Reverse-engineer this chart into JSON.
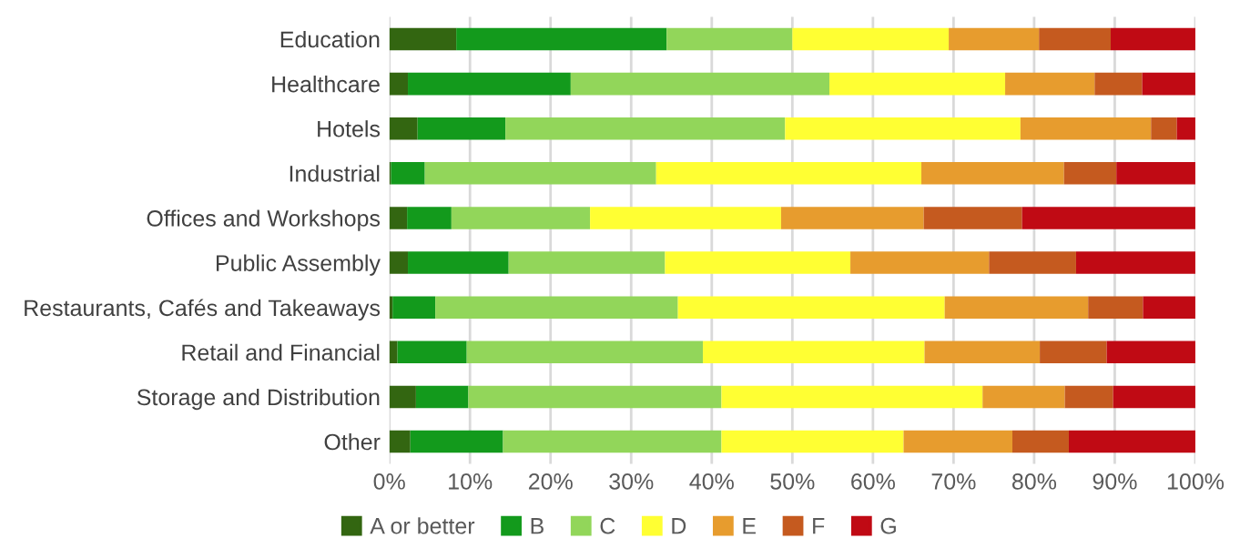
{
  "chart_data": {
    "type": "bar",
    "orientation": "horizontal",
    "stacked": true,
    "categories": [
      "Education",
      "Healthcare",
      "Hotels",
      "Industrial",
      "Offices and Workshops",
      "Public Assembly",
      "Restaurants, Cafés and Takeaways",
      "Retail and Financial",
      "Storage and Distribution",
      "Other"
    ],
    "series": [
      {
        "name": "A or better",
        "color": "#336611",
        "values": [
          8.3,
          2.3,
          3.5,
          0.2,
          2.2,
          2.3,
          0.4,
          1.0,
          3.3,
          2.6
        ]
      },
      {
        "name": "B",
        "color": "#139a1c",
        "values": [
          26.1,
          20.2,
          10.9,
          4.2,
          5.5,
          12.5,
          5.3,
          8.6,
          6.5,
          11.5
        ]
      },
      {
        "name": "C",
        "color": "#92d65a",
        "values": [
          15.6,
          32.1,
          34.7,
          28.7,
          17.2,
          19.4,
          30.1,
          29.3,
          31.4,
          27.1
        ]
      },
      {
        "name": "D",
        "color": "#ffff33",
        "values": [
          19.4,
          21.8,
          29.2,
          32.9,
          23.7,
          23.0,
          33.1,
          27.5,
          32.4,
          22.6
        ]
      },
      {
        "name": "E",
        "color": "#e79c2e",
        "values": [
          11.2,
          11.1,
          16.2,
          17.7,
          17.7,
          17.2,
          17.8,
          14.3,
          10.2,
          13.5
        ]
      },
      {
        "name": "F",
        "color": "#c55a1f",
        "values": [
          8.9,
          5.9,
          3.2,
          6.5,
          12.2,
          10.8,
          6.8,
          8.3,
          6.0,
          7.0
        ]
      },
      {
        "name": "G",
        "color": "#c00a14",
        "values": [
          10.5,
          6.6,
          2.3,
          9.8,
          21.5,
          14.8,
          6.5,
          11.0,
          10.2,
          15.7
        ]
      }
    ],
    "xlim": [
      0,
      100
    ],
    "xticks": [
      {
        "value": 0,
        "label": "0%"
      },
      {
        "value": 10,
        "label": "10%"
      },
      {
        "value": 20,
        "label": "20%"
      },
      {
        "value": 30,
        "label": "30%"
      },
      {
        "value": 40,
        "label": "40%"
      },
      {
        "value": 50,
        "label": "50%"
      },
      {
        "value": 60,
        "label": "60%"
      },
      {
        "value": 70,
        "label": "70%"
      },
      {
        "value": 80,
        "label": "80%"
      },
      {
        "value": 90,
        "label": "90%"
      },
      {
        "value": 100,
        "label": "100%"
      }
    ],
    "grid": "x",
    "legend": "bottom"
  }
}
